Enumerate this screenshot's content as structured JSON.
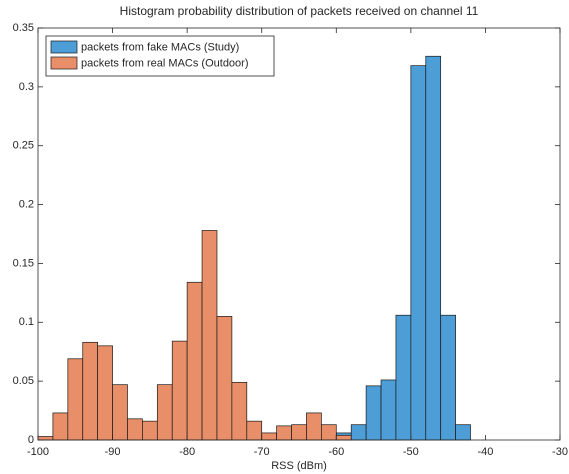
{
  "chart_data": {
    "type": "histogram",
    "title": "Histogram probability distribution of packets received on channel 11",
    "x_label": "RSS (dBm)",
    "xlim": [
      -100,
      -30
    ],
    "xticks": [
      -100,
      -90,
      -80,
      -70,
      -60,
      -50,
      -40,
      -30
    ],
    "ylim": [
      0,
      0.35
    ],
    "yticks": [
      0,
      0.05,
      0.1,
      0.15,
      0.2,
      0.25,
      0.3,
      0.35
    ],
    "legend": "upper left",
    "series": [
      {
        "name": "packets from fake MACs (Study)",
        "color": "#4d9dd6",
        "bins": [
          -60,
          -58,
          -56,
          -54,
          -52,
          -50,
          -48,
          -46,
          -44,
          -42
        ],
        "values": [
          0.006,
          0.013,
          0.046,
          0.051,
          0.106,
          0.318,
          0.326,
          0.106,
          0.013
        ]
      },
      {
        "name": "packets from real MACs (Outdoor)",
        "color": "#e88e68",
        "bins": [
          -100,
          -98,
          -96,
          -94,
          -92,
          -90,
          -88,
          -86,
          -84,
          -82,
          -80,
          -78,
          -76,
          -74,
          -72,
          -70,
          -68,
          -66,
          -64,
          -62,
          -60,
          -58
        ],
        "values": [
          0.003,
          0.023,
          0.069,
          0.083,
          0.08,
          0.047,
          0.018,
          0.016,
          0.047,
          0.084,
          0.134,
          0.178,
          0.105,
          0.049,
          0.016,
          0.006,
          0.012,
          0.013,
          0.023,
          0.013,
          0.004
        ]
      }
    ]
  }
}
